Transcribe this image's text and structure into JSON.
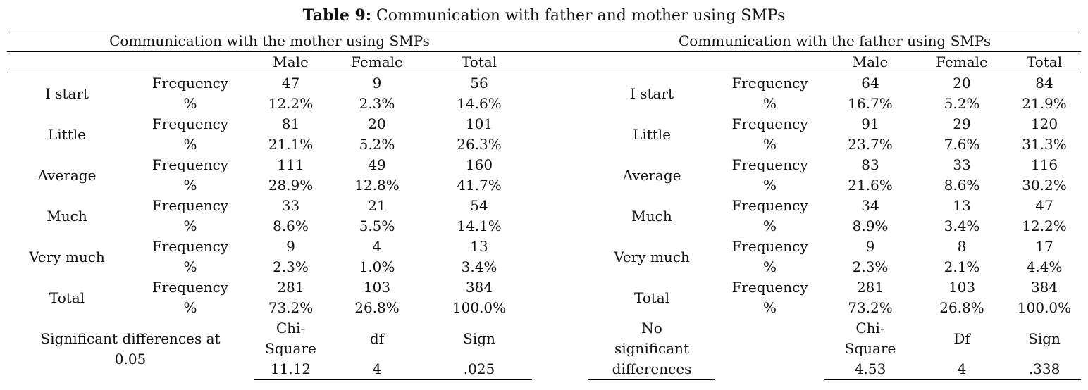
{
  "caption": {
    "label": "Table 9:",
    "text": " Communication with father and mother using SMPs"
  },
  "groups": {
    "mother": "Communication with the mother using SMPs",
    "father": "Communication with the father using SMPs"
  },
  "columns": {
    "male": "Male",
    "female": "Female",
    "total": "Total"
  },
  "row_labels": {
    "frequency": "Frequency",
    "percent": "%"
  },
  "categories": [
    "I start",
    "Little",
    "Average",
    "Much",
    "Very much",
    "Total"
  ],
  "mother": {
    "freq": [
      [
        "47",
        "9",
        "56"
      ],
      [
        "81",
        "20",
        "101"
      ],
      [
        "111",
        "49",
        "160"
      ],
      [
        "33",
        "21",
        "54"
      ],
      [
        "9",
        "4",
        "13"
      ],
      [
        "281",
        "103",
        "384"
      ]
    ],
    "pct": [
      [
        "12.2%",
        "2.3%",
        "14.6%"
      ],
      [
        "21.1%",
        "5.2%",
        "26.3%"
      ],
      [
        "28.9%",
        "12.8%",
        "41.7%"
      ],
      [
        "8.6%",
        "5.5%",
        "14.1%"
      ],
      [
        "2.3%",
        "1.0%",
        "3.4%"
      ],
      [
        "73.2%",
        "26.8%",
        "100.0%"
      ]
    ],
    "significance": {
      "label_line1": "Significant differences at",
      "label_line2": "0.05",
      "chi_line1": "Chi-",
      "chi_line2": "Square",
      "df_label": "df",
      "sign_label": "Sign",
      "chi_value": "11.12",
      "df_value": "4",
      "sign_value": ".025"
    }
  },
  "father": {
    "freq": [
      [
        "64",
        "20",
        "84"
      ],
      [
        "91",
        "29",
        "120"
      ],
      [
        "83",
        "33",
        "116"
      ],
      [
        "34",
        "13",
        "47"
      ],
      [
        "9",
        "8",
        "17"
      ],
      [
        "281",
        "103",
        "384"
      ]
    ],
    "pct": [
      [
        "16.7%",
        "5.2%",
        "21.9%"
      ],
      [
        "23.7%",
        "7.6%",
        "31.3%"
      ],
      [
        "21.6%",
        "8.6%",
        "30.2%"
      ],
      [
        "8.9%",
        "3.4%",
        "12.2%"
      ],
      [
        "2.3%",
        "2.1%",
        "4.4%"
      ],
      [
        "73.2%",
        "26.8%",
        "100.0%"
      ]
    ],
    "significance": {
      "label_line1": "No",
      "label_line2": "significant",
      "label_line3": "differences",
      "chi_line1": "Chi-",
      "chi_line2": "Square",
      "df_label": "Df",
      "sign_label": "Sign",
      "chi_value": "4.53",
      "df_value": "4",
      "sign_value": ".338"
    }
  }
}
